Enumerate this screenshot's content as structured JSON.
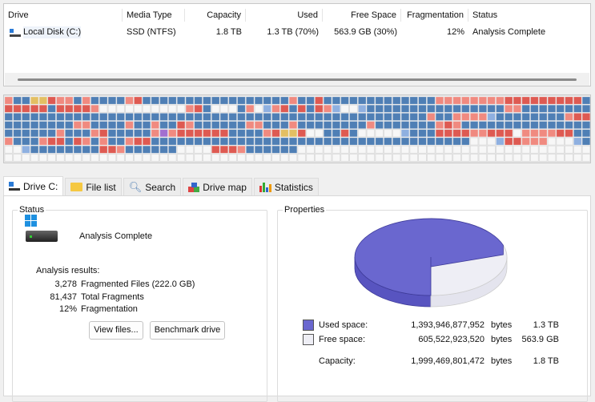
{
  "drive_list": {
    "columns": [
      "Drive",
      "Media Type",
      "Capacity",
      "Used",
      "Free Space",
      "Fragmentation",
      "Status"
    ],
    "rows": [
      {
        "drive": "Local Disk (C:)",
        "media": "SSD (NTFS)",
        "capacity": "1.8 TB",
        "used": "1.3 TB (70%)",
        "free": "563.9 GB (30%)",
        "fragmentation": "12%",
        "status": "Analysis Complete"
      }
    ]
  },
  "drive_map": {
    "colors": {
      "b": "#4f7fb5",
      "r": "#f08a80",
      "R": "#de5a52",
      "y": "#e3bf63",
      "p": "#a26fd0",
      "l": "#8fb0e0",
      "w": "#f7f7f7"
    },
    "rows": [
      "rbbyyRrrbrbbbbrRbbbbbbbbbbbbbbbbbrbbRbbbbbbbbbbbbbrrrrrrrrRRRRRRRRRbbRb",
      "RRRRRbRRRRrwwwwwwwwwwrRbwwwbrwlrRbRbRrlwwlbbbbbbbbbbbbbbbbrrbbbbbbbbbbb",
      "bbbbbbbbbbbbbbbbbbbbbbbbbbbbbbbbbbbbbbbbbbbbbbbbbrbbrrrrlbbbbbbbbrRRRRr",
      "bbbbbbbbrrbbbbrbbrbbRrbbbbbbrrbbbrbbbbbbbbrbbbbbbbrRrbbbbbbbbbbbbbbbbbb",
      "bbbbbbrbbbrRbbbbbrprRRRRRRbbbbrRyyRwwbbRbwwwwwlbbbRRRRrrRRRwrrrrRRbbbbwwwwwwlr",
      "rbbbrRRbRrbrbbrRRbbbbbbbbbbbbbbbbbbbbbbbbbbbbbbbbbbbbbwwwlRRrrrwwwlbbrwwwwwwwll",
      "wwlbbbbbbbbRRrbbbbbbwwwwRRRrbbbbbbwwwwwwwwwwwwwwwwwwwwwwwwwwwwwwwwwwwwwwww",
      "wwwwwwwwwwwwwwwwwwwwwwwwwwwwwwwwwwwwwwwwwwwwwwwwwwwwwwwwwwwwwwwwwwwwwwwwww"
    ]
  },
  "tabs": [
    {
      "label": "Drive C:",
      "icon": "drive-icon"
    },
    {
      "label": "File list",
      "icon": "folder-icon"
    },
    {
      "label": "Search",
      "icon": "magnifier-icon"
    },
    {
      "label": "Drive map",
      "icon": "drive-map-icon"
    },
    {
      "label": "Statistics",
      "icon": "bar-chart-icon"
    }
  ],
  "status": {
    "title": "Status",
    "state": "Analysis Complete",
    "results_label": "Analysis results:",
    "results": [
      {
        "value": "3,278",
        "label": "Fragmented Files (222.0 GB)"
      },
      {
        "value": "81,437",
        "label": "Total Fragments"
      },
      {
        "value": "12%",
        "label": "Fragmentation"
      }
    ],
    "view_files": "View files...",
    "benchmark": "Benchmark drive"
  },
  "properties": {
    "title": "Properties",
    "used": {
      "label": "Used space:",
      "bytes": "1,393,946,877,952",
      "unit": "bytes",
      "human": "1.3 TB",
      "color": "#6a67cf"
    },
    "free": {
      "label": "Free space:",
      "bytes": "605,522,923,520",
      "unit": "bytes",
      "human": "563.9 GB",
      "color": "#eeeef5"
    },
    "capacity": {
      "label": "Capacity:",
      "bytes": "1,999,469,801,472",
      "unit": "bytes",
      "human": "1.8 TB"
    },
    "used_fraction": 0.7
  }
}
